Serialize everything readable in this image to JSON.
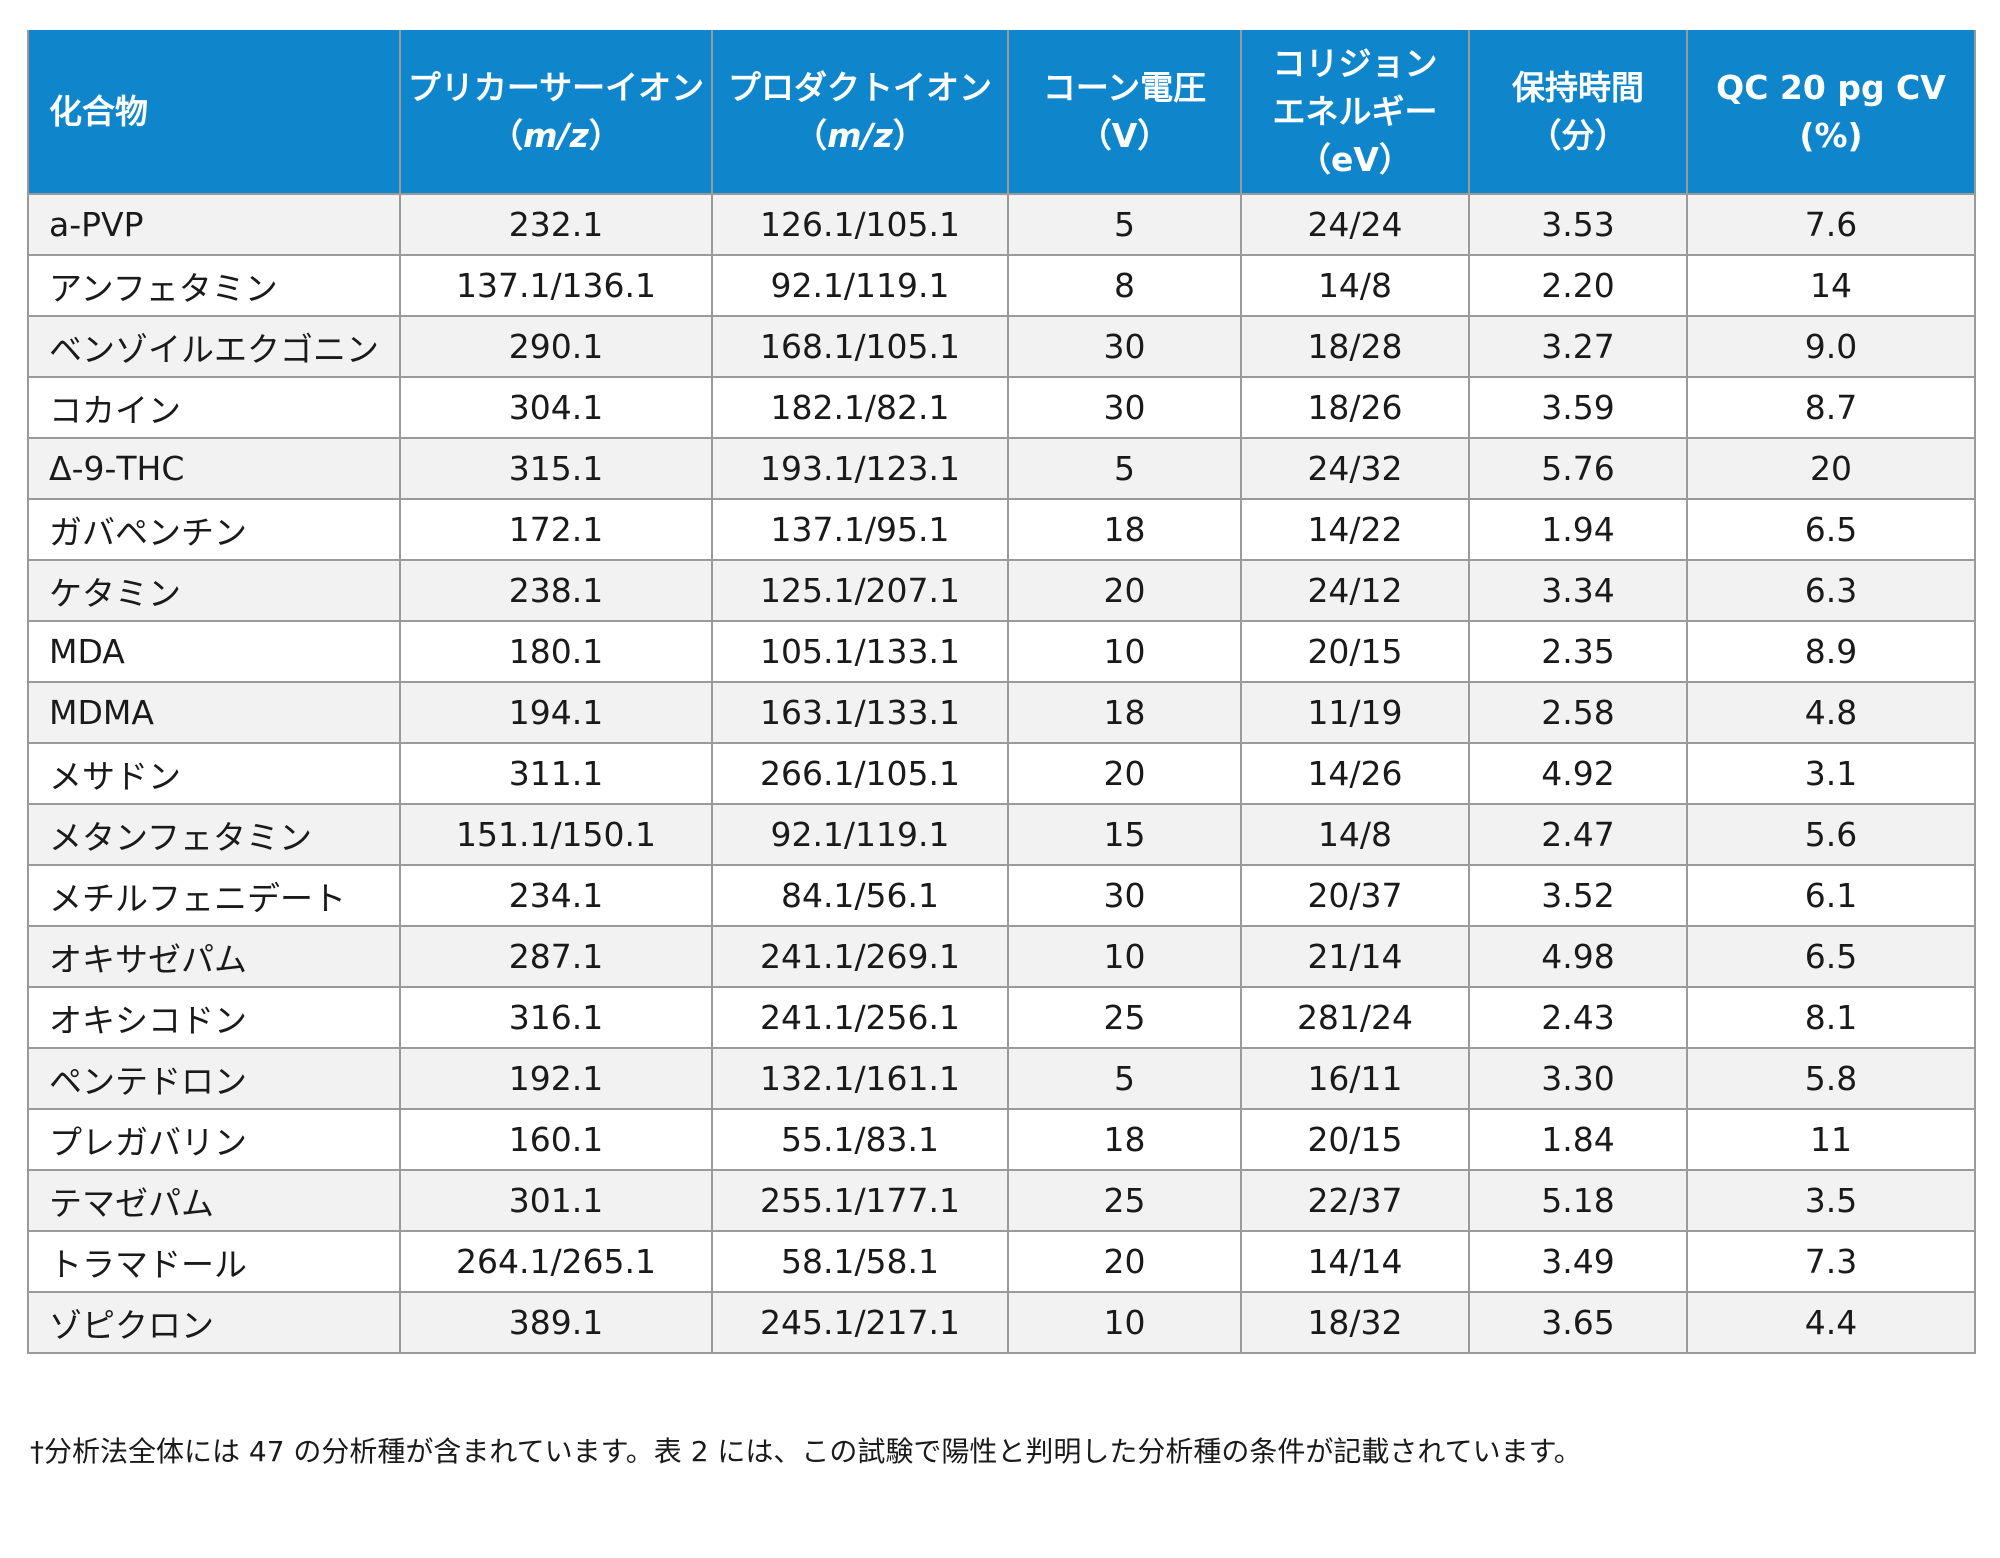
{
  "table": {
    "headers": {
      "compound": "化合物",
      "precursor": {
        "line1": "プリカーサーイオン",
        "open": "（",
        "unit": "m/z",
        "close": "）"
      },
      "product": {
        "line1": "プロダクトイオン",
        "open": "（",
        "unit": "m/z",
        "close": "）"
      },
      "cone": {
        "line1": "コーン電圧",
        "line2": "（V）"
      },
      "collision": {
        "line1": "コリジョン",
        "line2": "エネルギー",
        "line3": "（eV）"
      },
      "retention": {
        "line1": "保持時間",
        "line2": "（分）"
      },
      "qc": {
        "line1": "QC 20 pg CV",
        "line2": "(%)"
      }
    },
    "rows": [
      {
        "compound": "a-PVP",
        "precursor": "232.1",
        "product": "126.1/105.1",
        "cone": "5",
        "collision": "24/24",
        "retention": "3.53",
        "cv": "7.6"
      },
      {
        "compound": "アンフェタミン",
        "precursor": "137.1/136.1",
        "product": "92.1/119.1",
        "cone": "8",
        "collision": "14/8",
        "retention": "2.20",
        "cv": "14"
      },
      {
        "compound": "ベンゾイルエクゴニン",
        "precursor": "290.1",
        "product": "168.1/105.1",
        "cone": "30",
        "collision": "18/28",
        "retention": "3.27",
        "cv": "9.0"
      },
      {
        "compound": "コカイン",
        "precursor": "304.1",
        "product": "182.1/82.1",
        "cone": "30",
        "collision": "18/26",
        "retention": "3.59",
        "cv": "8.7"
      },
      {
        "compound": "Δ-9-THC",
        "precursor": "315.1",
        "product": "193.1/123.1",
        "cone": "5",
        "collision": "24/32",
        "retention": "5.76",
        "cv": "20"
      },
      {
        "compound": "ガバペンチン",
        "precursor": "172.1",
        "product": "137.1/95.1",
        "cone": "18",
        "collision": "14/22",
        "retention": "1.94",
        "cv": "6.5"
      },
      {
        "compound": "ケタミン",
        "precursor": "238.1",
        "product": "125.1/207.1",
        "cone": "20",
        "collision": "24/12",
        "retention": "3.34",
        "cv": "6.3"
      },
      {
        "compound": "MDA",
        "precursor": "180.1",
        "product": "105.1/133.1",
        "cone": "10",
        "collision": "20/15",
        "retention": "2.35",
        "cv": "8.9"
      },
      {
        "compound": "MDMA",
        "precursor": "194.1",
        "product": "163.1/133.1",
        "cone": "18",
        "collision": "11/19",
        "retention": "2.58",
        "cv": "4.8"
      },
      {
        "compound": "メサドン",
        "precursor": "311.1",
        "product": "266.1/105.1",
        "cone": "20",
        "collision": "14/26",
        "retention": "4.92",
        "cv": "3.1"
      },
      {
        "compound": "メタンフェタミン",
        "precursor": "151.1/150.1",
        "product": "92.1/119.1",
        "cone": "15",
        "collision": "14/8",
        "retention": "2.47",
        "cv": "5.6"
      },
      {
        "compound": "メチルフェニデート",
        "precursor": "234.1",
        "product": "84.1/56.1",
        "cone": "30",
        "collision": "20/37",
        "retention": "3.52",
        "cv": "6.1"
      },
      {
        "compound": "オキサゼパム",
        "precursor": "287.1",
        "product": "241.1/269.1",
        "cone": "10",
        "collision": "21/14",
        "retention": "4.98",
        "cv": "6.5"
      },
      {
        "compound": "オキシコドン",
        "precursor": "316.1",
        "product": "241.1/256.1",
        "cone": "25",
        "collision": "281/24",
        "retention": "2.43",
        "cv": "8.1"
      },
      {
        "compound": "ペンテドロン",
        "precursor": "192.1",
        "product": "132.1/161.1",
        "cone": "5",
        "collision": "16/11",
        "retention": "3.30",
        "cv": "5.8"
      },
      {
        "compound": "プレガバリン",
        "precursor": "160.1",
        "product": "55.1/83.1",
        "cone": "18",
        "collision": "20/15",
        "retention": "1.84",
        "cv": "11"
      },
      {
        "compound": "テマゼパム",
        "precursor": "301.1",
        "product": "255.1/177.1",
        "cone": "25",
        "collision": "22/37",
        "retention": "5.18",
        "cv": "3.5"
      },
      {
        "compound": "トラマドール",
        "precursor": "264.1/265.1",
        "product": "58.1/58.1",
        "cone": "20",
        "collision": "14/14",
        "retention": "3.49",
        "cv": "7.3"
      },
      {
        "compound": "ゾピクロン",
        "precursor": "389.1",
        "product": "245.1/217.1",
        "cone": "10",
        "collision": "18/32",
        "retention": "3.65",
        "cv": "4.4"
      }
    ]
  },
  "footnote": "†分析法全体には 47 の分析種が含まれています。表 2 には、この試験で陽性と判明した分析種の条件が記載されています。"
}
